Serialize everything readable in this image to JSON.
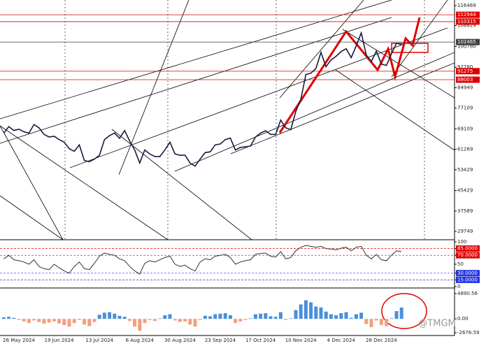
{
  "chart_data": [
    {
      "type": "line",
      "values": [
        67500,
        70000,
        68500,
        69000,
        68000,
        67500,
        70800,
        69500,
        67000,
        66000,
        66300,
        65000,
        64000,
        61500,
        60500,
        63000,
        57000,
        56500,
        57500,
        59000,
        65000,
        66500,
        67500,
        65500,
        68500,
        64500,
        61000,
        56000,
        61000,
        59500,
        58500,
        58500,
        61000,
        64000,
        59500,
        59000,
        59000,
        56000,
        54800,
        57500,
        60000,
        60300,
        63000,
        63300,
        65000,
        65600,
        61000,
        62000,
        62200,
        62500,
        66000,
        67500,
        68400,
        67000,
        67000,
        72500,
        69500,
        68800,
        75800,
        80500,
        90000,
        90500,
        92300,
        98500,
        93000,
        95600,
        97000,
        98800,
        99900,
        96500,
        101000,
        106000,
        97500,
        95000,
        99000,
        94000,
        93500,
        98000,
        102000,
        101500
      ],
      "color": "#1a1a40",
      "ylim": [
        26527,
        118617
      ],
      "yticks": [
        116469,
        108829,
        100780,
        92780,
        84949,
        77109,
        69109,
        61269,
        53429,
        45429,
        37589,
        29749
      ],
      "hlines": [
        {
          "value": 112944,
          "color": "#e00000"
        },
        {
          "value": 110315,
          "color": "#e00000"
        },
        {
          "value": 102465,
          "color": "#404040"
        },
        {
          "value": 91275,
          "color": "#e00000"
        },
        {
          "value": 88003,
          "color": "#e00000"
        }
      ]
    },
    {
      "type": "line",
      "values": [
        62,
        70,
        60,
        58,
        55,
        50,
        60,
        45,
        40,
        38,
        50,
        42,
        35,
        30,
        45,
        55,
        40,
        38,
        52,
        68,
        75,
        72,
        70,
        62,
        58,
        45,
        35,
        28,
        52,
        58,
        55,
        60,
        65,
        68,
        50,
        45,
        48,
        40,
        35,
        55,
        62,
        60,
        68,
        70,
        72,
        65,
        50,
        55,
        58,
        60,
        72,
        74,
        75,
        68,
        66,
        78,
        62,
        65,
        80,
        88,
        92,
        90,
        88,
        90,
        85,
        84,
        82,
        86,
        88,
        80,
        88,
        90,
        70,
        62,
        72,
        60,
        58,
        70,
        80,
        78
      ],
      "color": "#333333",
      "ylim": [
        0,
        100
      ],
      "yticks": [
        100,
        {
          "value": 85,
          "label": "85.0000"
        },
        {
          "value": 70,
          "label": "70.0000"
        },
        50,
        {
          "value": 30,
          "label": "30.0000"
        },
        {
          "value": 15,
          "label": "15.0000"
        },
        0
      ],
      "levels": [
        85,
        70,
        30,
        15
      ],
      "level_colors": [
        "#e00000",
        "#e00000",
        "#2030e0",
        "#2030e0"
      ]
    },
    {
      "type": "bar",
      "categories": [
        null,
        null,
        null,
        "26 May 2024",
        null,
        null,
        null,
        null,
        null,
        null,
        null,
        "19 Jun 2024",
        null,
        null,
        null,
        null,
        null,
        null,
        null,
        "13 Jul 2024",
        null,
        null,
        null,
        null,
        null,
        null,
        null,
        "6 Aug 2024",
        null,
        null,
        null,
        null,
        null,
        null,
        null,
        "30 Aug 2024",
        null,
        null,
        null,
        null,
        null,
        null,
        null,
        "23 Sep 2024",
        null,
        null,
        null,
        null,
        null,
        null,
        null,
        "17 Oct 2024",
        null,
        null,
        null,
        null,
        null,
        null,
        null,
        "10 Nov 2024",
        null,
        null,
        null,
        null,
        null,
        null,
        null,
        "4 Dec 2024",
        null,
        null,
        null,
        null,
        null,
        null,
        null,
        "28 Dec 2024",
        null,
        null,
        null,
        null
      ],
      "values": [
        300,
        400,
        200,
        -200,
        -500,
        -800,
        -300,
        -600,
        -900,
        -700,
        -500,
        -900,
        -1200,
        -1500,
        -800,
        -200,
        -1100,
        -1400,
        -600,
        800,
        1200,
        1300,
        1000,
        600,
        400,
        -400,
        -1500,
        -2300,
        -800,
        -200,
        -400,
        100,
        700,
        900,
        -300,
        -600,
        -500,
        -1100,
        -1500,
        -200,
        600,
        500,
        900,
        1000,
        1100,
        700,
        -800,
        -500,
        -200,
        100,
        900,
        1000,
        1100,
        500,
        400,
        1300,
        -200,
        100,
        1700,
        2800,
        3600,
        3200,
        2400,
        2200,
        1400,
        900,
        700,
        1100,
        1300,
        200,
        900,
        1200,
        -1000,
        -1600,
        -300,
        -1200,
        -1400,
        100,
        1500,
        2200
      ],
      "positive_color": "#4a90d9",
      "negative_color": "#f0a080",
      "ylim": [
        -2676.59,
        4890.56
      ],
      "yticks": [
        4890.56,
        {
          "value": 0,
          "label": "0.00"
        },
        -2676.59
      ]
    }
  ],
  "watermark": "@TMGM"
}
